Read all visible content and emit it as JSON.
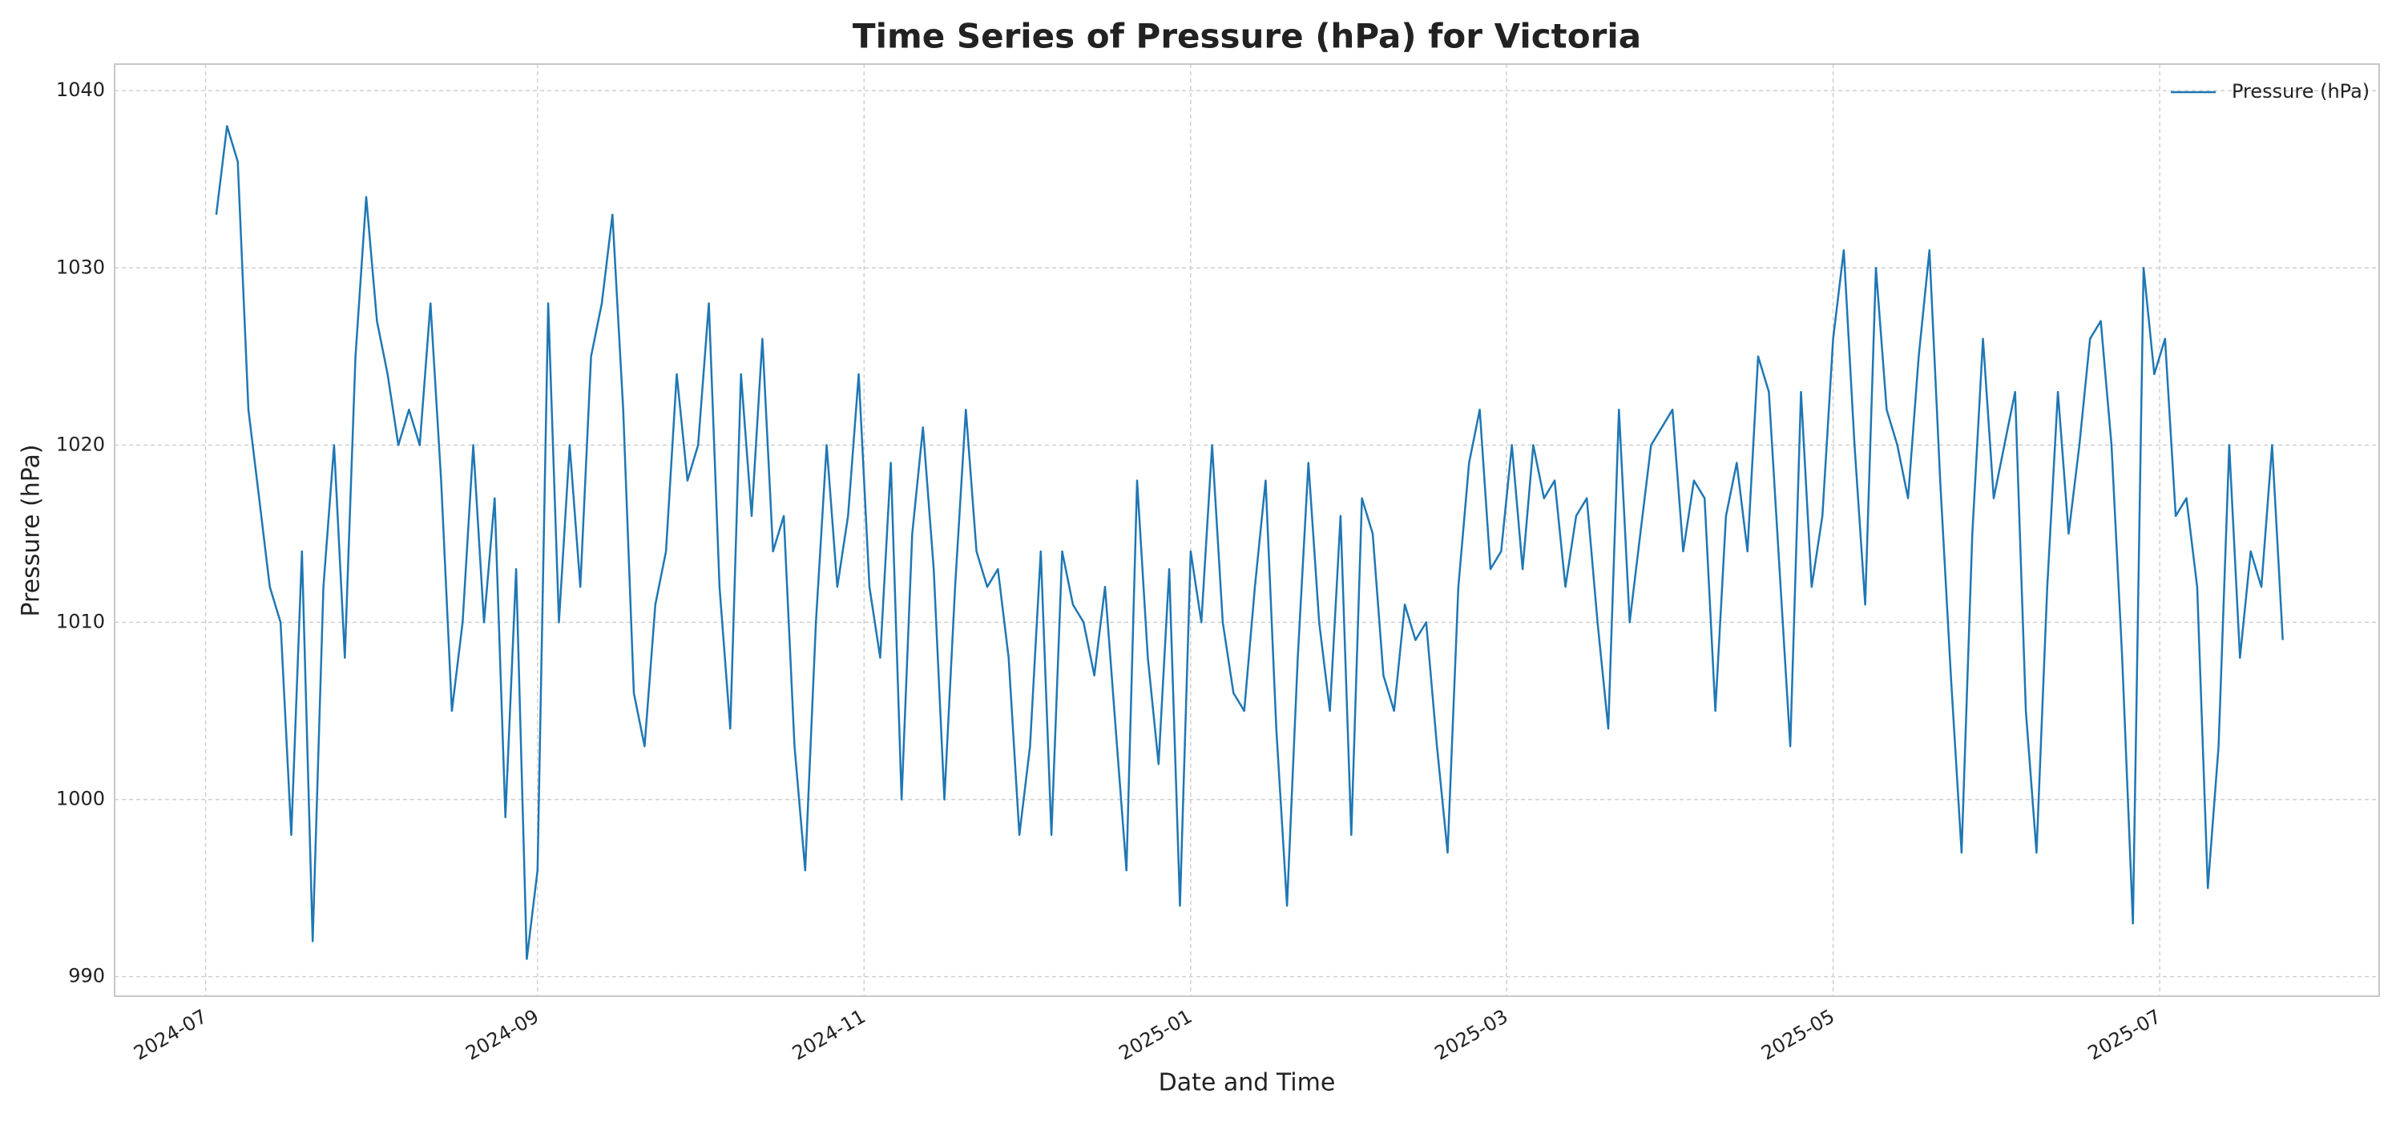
{
  "chart_data": {
    "type": "line",
    "title": "Time Series of Pressure (hPa) for Victoria",
    "x_label": "Date and Time",
    "y_label": "Pressure (hPa)",
    "x": [
      "2024-07-03",
      "2024-07-05",
      "2024-07-07",
      "2024-07-09",
      "2024-07-11",
      "2024-07-13",
      "2024-07-15",
      "2024-07-17",
      "2024-07-19",
      "2024-07-21",
      "2024-07-23",
      "2024-07-25",
      "2024-07-27",
      "2024-07-29",
      "2024-07-31",
      "2024-08-02",
      "2024-08-04",
      "2024-08-06",
      "2024-08-08",
      "2024-08-10",
      "2024-08-12",
      "2024-08-14",
      "2024-08-16",
      "2024-08-18",
      "2024-08-20",
      "2024-08-22",
      "2024-08-24",
      "2024-08-26",
      "2024-08-28",
      "2024-08-30",
      "2024-09-01",
      "2024-09-03",
      "2024-09-05",
      "2024-09-07",
      "2024-09-09",
      "2024-09-11",
      "2024-09-13",
      "2024-09-15",
      "2024-09-17",
      "2024-09-19",
      "2024-09-21",
      "2024-09-23",
      "2024-09-25",
      "2024-09-27",
      "2024-09-29",
      "2024-10-01",
      "2024-10-03",
      "2024-10-05",
      "2024-10-07",
      "2024-10-09",
      "2024-10-11",
      "2024-10-13",
      "2024-10-15",
      "2024-10-17",
      "2024-10-19",
      "2024-10-21",
      "2024-10-23",
      "2024-10-25",
      "2024-10-27",
      "2024-10-29",
      "2024-10-31",
      "2024-11-02",
      "2024-11-04",
      "2024-11-06",
      "2024-11-08",
      "2024-11-10",
      "2024-11-12",
      "2024-11-14",
      "2024-11-16",
      "2024-11-18",
      "2024-11-20",
      "2024-11-22",
      "2024-11-24",
      "2024-11-26",
      "2024-11-28",
      "2024-11-30",
      "2024-12-02",
      "2024-12-04",
      "2024-12-06",
      "2024-12-08",
      "2024-12-10",
      "2024-12-12",
      "2024-12-14",
      "2024-12-16",
      "2024-12-18",
      "2024-12-20",
      "2024-12-22",
      "2024-12-24",
      "2024-12-26",
      "2024-12-28",
      "2024-12-30",
      "2025-01-01",
      "2025-01-03",
      "2025-01-05",
      "2025-01-07",
      "2025-01-09",
      "2025-01-11",
      "2025-01-13",
      "2025-01-15",
      "2025-01-17",
      "2025-01-19",
      "2025-01-21",
      "2025-01-23",
      "2025-01-25",
      "2025-01-27",
      "2025-01-29",
      "2025-01-31",
      "2025-02-02",
      "2025-02-04",
      "2025-02-06",
      "2025-02-08",
      "2025-02-10",
      "2025-02-12",
      "2025-02-14",
      "2025-02-16",
      "2025-02-18",
      "2025-02-20",
      "2025-02-22",
      "2025-02-24",
      "2025-02-26",
      "2025-02-28",
      "2025-03-02",
      "2025-03-04",
      "2025-03-06",
      "2025-03-08",
      "2025-03-10",
      "2025-03-12",
      "2025-03-14",
      "2025-03-16",
      "2025-03-18",
      "2025-03-20",
      "2025-03-22",
      "2025-03-24",
      "2025-03-26",
      "2025-03-28",
      "2025-03-30",
      "2025-04-01",
      "2025-04-03",
      "2025-04-05",
      "2025-04-07",
      "2025-04-09",
      "2025-04-11",
      "2025-04-13",
      "2025-04-15",
      "2025-04-17",
      "2025-04-19",
      "2025-04-21",
      "2025-04-23",
      "2025-04-25",
      "2025-04-27",
      "2025-04-29",
      "2025-05-01",
      "2025-05-03",
      "2025-05-05",
      "2025-05-07",
      "2025-05-09",
      "2025-05-11",
      "2025-05-13",
      "2025-05-15",
      "2025-05-17",
      "2025-05-19",
      "2025-05-21",
      "2025-05-23",
      "2025-05-25",
      "2025-05-27",
      "2025-05-29",
      "2025-05-31",
      "2025-06-02",
      "2025-06-04",
      "2025-06-06",
      "2025-06-08",
      "2025-06-10",
      "2025-06-12",
      "2025-06-14",
      "2025-06-16",
      "2025-06-18",
      "2025-06-20",
      "2025-06-22",
      "2025-06-24",
      "2025-06-26",
      "2025-06-28",
      "2025-06-30",
      "2025-07-02",
      "2025-07-04",
      "2025-07-06",
      "2025-07-08",
      "2025-07-10",
      "2025-07-12",
      "2025-07-14",
      "2025-07-16",
      "2025-07-18",
      "2025-07-20",
      "2025-07-22",
      "2025-07-24"
    ],
    "series": [
      {
        "name": "Pressure (hPa)",
        "color": "#1f77b4",
        "values": [
          1033,
          1038,
          1036,
          1022,
          1017,
          1012,
          1010,
          998,
          1014,
          992,
          1012,
          1020,
          1008,
          1025,
          1034,
          1027,
          1024,
          1020,
          1022,
          1020,
          1028,
          1018,
          1005,
          1010,
          1020,
          1010,
          1017,
          999,
          1013,
          991,
          996,
          1028,
          1010,
          1020,
          1012,
          1025,
          1028,
          1033,
          1022,
          1006,
          1003,
          1011,
          1014,
          1024,
          1018,
          1020,
          1028,
          1012,
          1004,
          1024,
          1016,
          1026,
          1014,
          1016,
          1003,
          996,
          1010,
          1020,
          1012,
          1016,
          1024,
          1012,
          1008,
          1019,
          1000,
          1015,
          1021,
          1013,
          1000,
          1012,
          1022,
          1014,
          1012,
          1013,
          1008,
          998,
          1003,
          1014,
          998,
          1014,
          1011,
          1010,
          1007,
          1012,
          1004,
          996,
          1018,
          1008,
          1002,
          1013,
          994,
          1014,
          1010,
          1020,
          1010,
          1006,
          1005,
          1012,
          1018,
          1004,
          994,
          1008,
          1019,
          1010,
          1005,
          1016,
          998,
          1017,
          1015,
          1007,
          1005,
          1011,
          1009,
          1010,
          1003,
          997,
          1012,
          1019,
          1022,
          1013,
          1014,
          1020,
          1013,
          1020,
          1017,
          1018,
          1012,
          1016,
          1017,
          1010,
          1004,
          1022,
          1010,
          1015,
          1020,
          1021,
          1022,
          1014,
          1018,
          1017,
          1005,
          1016,
          1019,
          1014,
          1025,
          1023,
          1013,
          1003,
          1023,
          1012,
          1016,
          1026,
          1031,
          1020,
          1011,
          1030,
          1022,
          1020,
          1017,
          1025,
          1031,
          1018,
          1007,
          997,
          1015,
          1026,
          1017,
          1020,
          1023,
          1005,
          997,
          1012,
          1023,
          1015,
          1020,
          1026,
          1027,
          1020,
          1008,
          993,
          1030,
          1024,
          1026,
          1016,
          1017,
          1012,
          995,
          1003,
          1020,
          1008,
          1014,
          1012,
          1020,
          1009
        ]
      }
    ],
    "xlim": [
      "2024-06-14",
      "2025-08-11"
    ],
    "xticks": [
      {
        "value": "2024-07-01",
        "label": "2024-07"
      },
      {
        "value": "2024-09-01",
        "label": "2024-09"
      },
      {
        "value": "2024-11-01",
        "label": "2024-11"
      },
      {
        "value": "2025-01-01",
        "label": "2025-01"
      },
      {
        "value": "2025-03-01",
        "label": "2025-03"
      },
      {
        "value": "2025-05-01",
        "label": "2025-05"
      },
      {
        "value": "2025-07-01",
        "label": "2025-07"
      }
    ],
    "ylim": [
      988.9,
      1041.5
    ],
    "yticks": [
      990,
      1000,
      1010,
      1020,
      1030,
      1040
    ],
    "grid": true,
    "legend": "upper right"
  }
}
